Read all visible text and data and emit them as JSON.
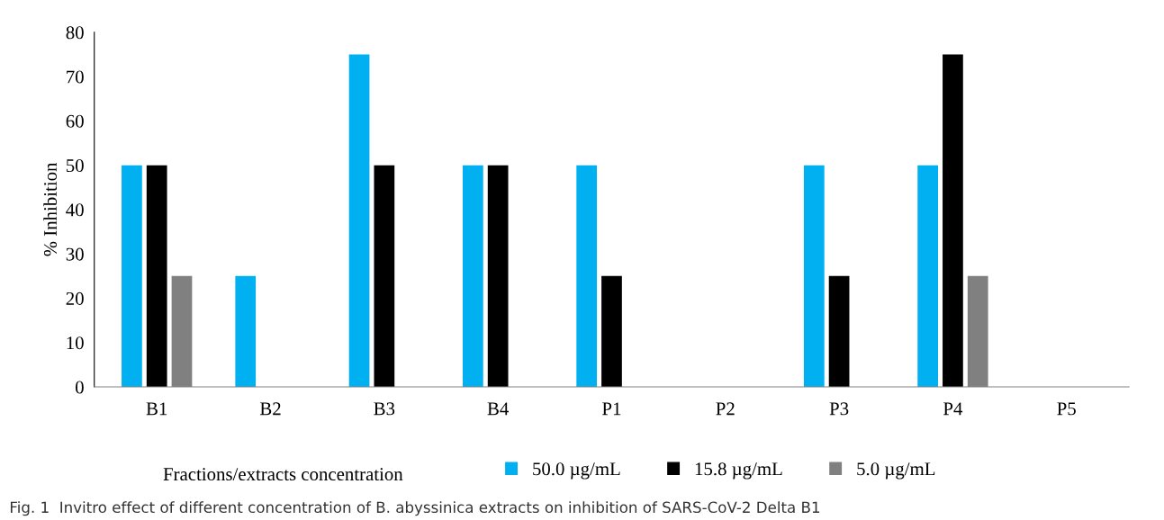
{
  "chart_data": {
    "type": "bar",
    "ylabel": "% Inhibition",
    "xlabel": "Fractions/extracts concentration",
    "categories": [
      "B1",
      "B2",
      "B3",
      "B4",
      "P1",
      "P2",
      "P3",
      "P4",
      "P5"
    ],
    "series": [
      {
        "name": "50.0 µg/mL",
        "color": "#00b0f0",
        "values": [
          50,
          25,
          75,
          50,
          50,
          0,
          50,
          50,
          0
        ]
      },
      {
        "name": "15.8 µg/mL",
        "color": "#000000",
        "values": [
          50,
          0,
          50,
          50,
          25,
          0,
          25,
          75,
          0
        ]
      },
      {
        "name": "5.0 µg/mL",
        "color": "#808080",
        "values": [
          25,
          0,
          0,
          0,
          0,
          0,
          0,
          25,
          0
        ]
      }
    ],
    "ylim": [
      0,
      80
    ],
    "yticks": [
      0,
      10,
      20,
      30,
      40,
      50,
      60,
      70,
      80
    ],
    "grid": false,
    "legend": "bottom",
    "annotations": [
      "Fig. 1  Invitro effect of different concentration of B. abyssinica extracts on inhibition of SARS-CoV-2 Delta B1"
    ]
  }
}
